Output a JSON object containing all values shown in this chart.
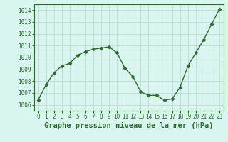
{
  "x": [
    0,
    1,
    2,
    3,
    4,
    5,
    6,
    7,
    8,
    9,
    10,
    11,
    12,
    13,
    14,
    15,
    16,
    17,
    18,
    19,
    20,
    21,
    22,
    23
  ],
  "y": [
    1006.4,
    1007.7,
    1008.7,
    1009.3,
    1009.5,
    1010.2,
    1010.5,
    1010.7,
    1010.8,
    1010.9,
    1010.4,
    1009.1,
    1008.4,
    1007.1,
    1006.8,
    1006.8,
    1006.4,
    1006.5,
    1007.5,
    1009.3,
    1010.4,
    1011.5,
    1012.8,
    1014.1
  ],
  "line_color": "#2d6a2d",
  "marker": "D",
  "marker_size": 2.5,
  "bg_color": "#d8f5f0",
  "grid_color": "#c0d8d0",
  "title": "Graphe pression niveau de la mer (hPa)",
  "ylim": [
    1005.5,
    1014.5
  ],
  "xlim": [
    -0.5,
    23.5
  ],
  "yticks": [
    1006,
    1007,
    1008,
    1009,
    1010,
    1011,
    1012,
    1013,
    1014
  ],
  "xticks": [
    0,
    1,
    2,
    3,
    4,
    5,
    6,
    7,
    8,
    9,
    10,
    11,
    12,
    13,
    14,
    15,
    16,
    17,
    18,
    19,
    20,
    21,
    22,
    23
  ],
  "tick_fontsize": 5.5,
  "title_fontsize": 7.5,
  "tick_color": "#2d6a2d",
  "line_width": 1.0,
  "spine_color": "#2d6a2d"
}
